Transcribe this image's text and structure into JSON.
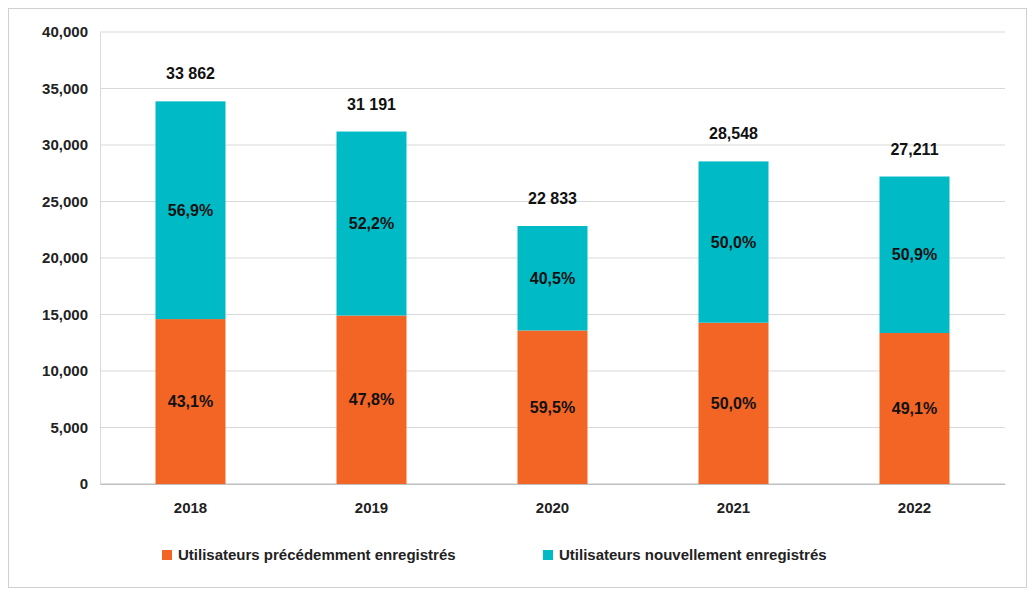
{
  "chart_data": {
    "type": "bar",
    "stacked": true,
    "grid": true,
    "legend": "bottom",
    "categories": [
      "2018",
      "2019",
      "2020",
      "2021",
      "2022"
    ],
    "totals": [
      33862,
      31191,
      22833,
      28548,
      27211
    ],
    "total_labels": [
      "33 862",
      "31 191",
      "22 833",
      "28,548",
      "27,211"
    ],
    "series": [
      {
        "name": "Utilisateurs précédemment enregistrés",
        "color": "#f26524",
        "values": [
          14595,
          14909,
          13586,
          14274,
          13361
        ],
        "shares": [
          43.1,
          47.8,
          59.5,
          50.0,
          49.1
        ],
        "share_labels": [
          "43,1%",
          "47,8%",
          "59,5%",
          "50,0%",
          "49,1%"
        ]
      },
      {
        "name": "Utilisateurs nouvellement enregistrés",
        "color": "#00bac6",
        "values": [
          19267,
          16282,
          9247,
          14274,
          13850
        ],
        "shares": [
          56.9,
          52.2,
          40.5,
          50.0,
          50.9
        ],
        "share_labels": [
          "56,9%",
          "52,2%",
          "40,5%",
          "50,0%",
          "50,9%"
        ]
      }
    ],
    "ylim": [
      0,
      40000
    ],
    "yticks": [
      0,
      {
        "value": 5000,
        "label": "5,000"
      },
      {
        "value": 10000,
        "label": "10,000"
      },
      {
        "value": 15000,
        "label": "15,000"
      },
      {
        "value": 20000,
        "label": "20,000"
      },
      {
        "value": 25000,
        "label": "25,000"
      },
      {
        "value": 30000,
        "label": "30,000"
      },
      {
        "value": 35000,
        "label": "35,000"
      },
      {
        "value": 40000,
        "label": "40,000"
      }
    ]
  }
}
